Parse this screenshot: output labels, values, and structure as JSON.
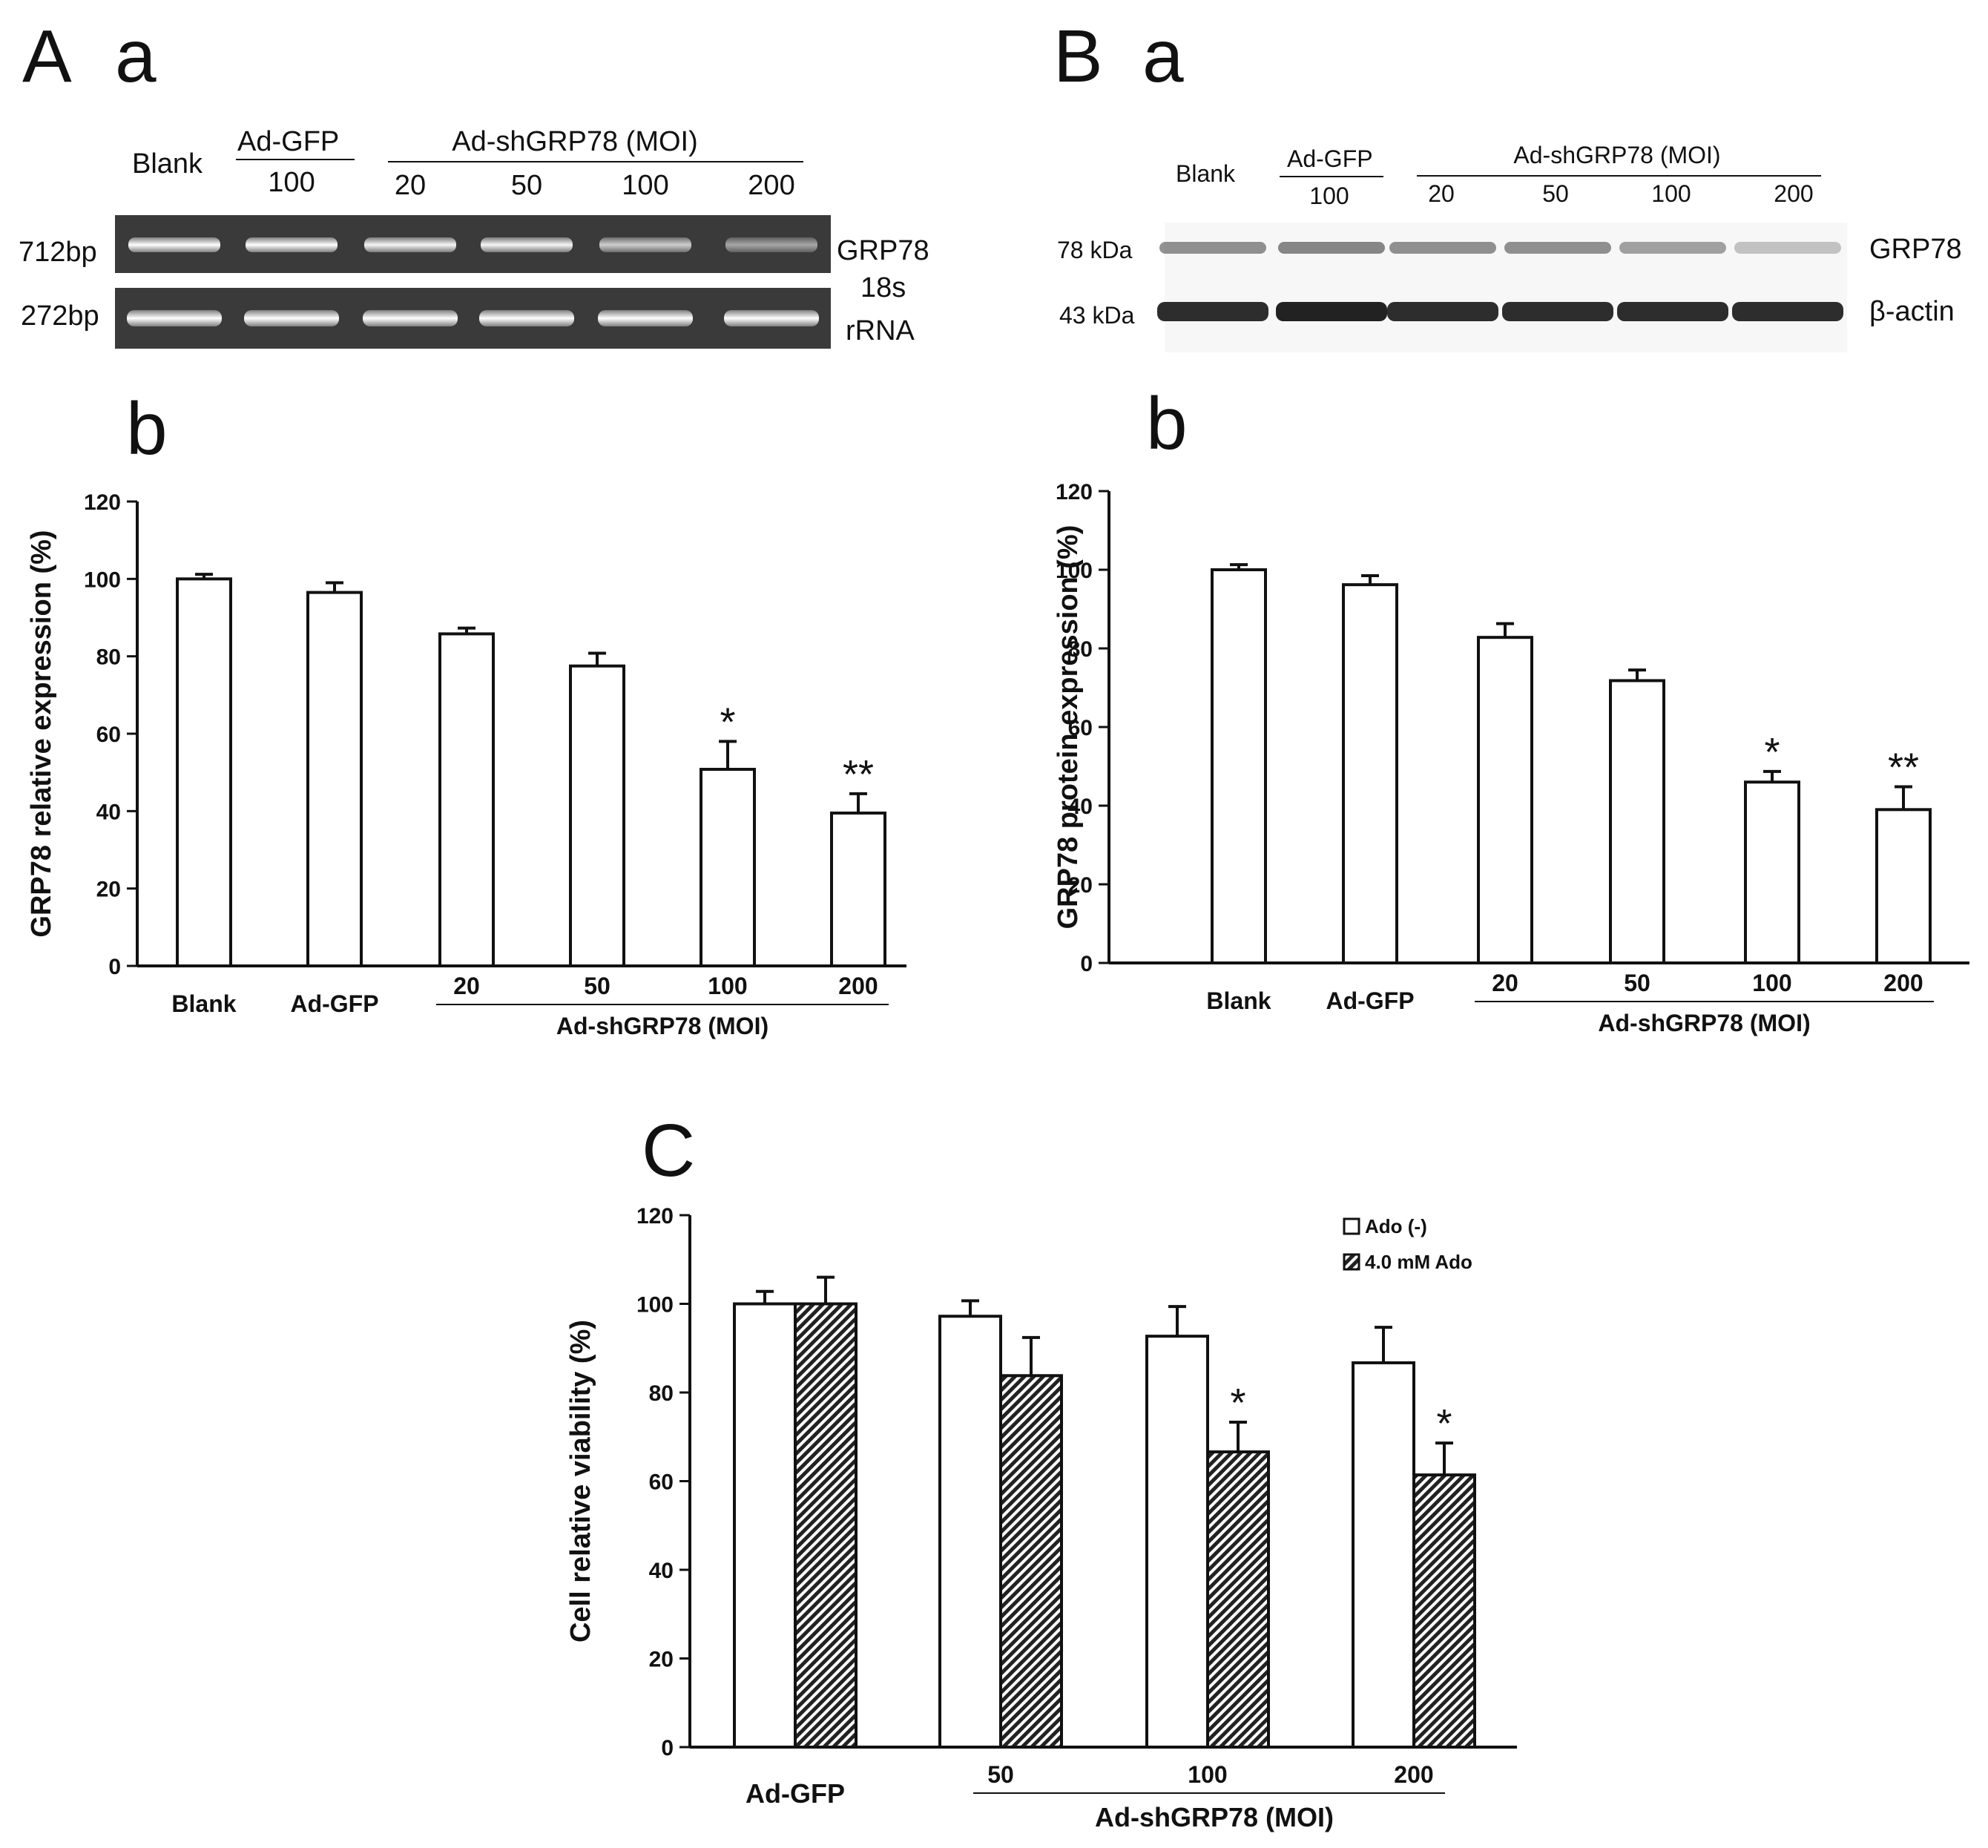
{
  "panels": {
    "A_letter": "A",
    "A_sub_a": "a",
    "A_sub_b": "b",
    "B_letter": "B",
    "B_sub_a": "a",
    "B_sub_b": "b",
    "C_letter": "C"
  },
  "gel": {
    "blank": "Blank",
    "ad_gfp": "Ad-GFP",
    "ad_gfp_dose": "100",
    "group": "Ad-shGRP78 (MOI)",
    "doses": [
      "20",
      "50",
      "100",
      "200"
    ],
    "row1_size": "712bp",
    "row1_name": "GRP78",
    "row2_size": "272bp",
    "row2_name_1": "18s",
    "row2_name_2": "rRNA",
    "grp78_intensity": [
      1.0,
      1.0,
      0.95,
      0.95,
      0.75,
      0.55
    ],
    "rrna_intensity": [
      1.0,
      1.0,
      1.0,
      1.0,
      1.0,
      1.0
    ]
  },
  "blot": {
    "blank": "Blank",
    "ad_gfp": "Ad-GFP",
    "ad_gfp_dose": "100",
    "group": "Ad-shGRP78 (MOI)",
    "doses": [
      "20",
      "50",
      "100",
      "200"
    ],
    "row1_size": "78 kDa",
    "row1_name": "GRP78",
    "row2_size": "43 kDa",
    "row2_name": "β-actin",
    "grp78_intensity": [
      0.6,
      0.65,
      0.6,
      0.6,
      0.5,
      0.3
    ],
    "actin_intensity": [
      0.95,
      1.0,
      0.95,
      0.95,
      0.95,
      0.95
    ]
  },
  "chart_data": [
    {
      "id": "A-b",
      "type": "bar",
      "ylabel": "GRP78 relative expression (%)",
      "ylim": [
        0,
        120
      ],
      "yticks": [
        0,
        20,
        40,
        60,
        80,
        100,
        120
      ],
      "categories": [
        "Blank",
        "Ad-GFP",
        "20",
        "50",
        "100",
        "200"
      ],
      "group_label": "Ad-shGRP78 (MOI)",
      "values": [
        100,
        96.5,
        85.8,
        77.5,
        50.8,
        39.5
      ],
      "errors": [
        1.2,
        2.5,
        1.5,
        3.3,
        7.2,
        5.0
      ],
      "annotations": [
        "",
        "",
        "",
        "",
        "*",
        "**"
      ]
    },
    {
      "id": "B-b",
      "type": "bar",
      "ylabel": "GRP78 protein expression (%)",
      "ylim": [
        0,
        120
      ],
      "yticks": [
        0,
        20,
        40,
        60,
        80,
        100,
        120
      ],
      "categories": [
        "Blank",
        "Ad-GFP",
        "20",
        "50",
        "100",
        "200"
      ],
      "group_label": "Ad-shGRP78 (MOI)",
      "values": [
        100,
        96.2,
        82.8,
        71.8,
        46.0,
        39.0
      ],
      "errors": [
        1.3,
        2.3,
        3.5,
        2.7,
        2.7,
        5.8
      ],
      "annotations": [
        "",
        "",
        "",
        "",
        "*",
        "**"
      ]
    },
    {
      "id": "C",
      "type": "bar",
      "ylabel": "Cell relative viability (%)",
      "ylim": [
        0,
        120
      ],
      "yticks": [
        0,
        20,
        40,
        60,
        80,
        100,
        120
      ],
      "categories": [
        "Ad-GFP",
        "50",
        "100",
        "200"
      ],
      "group_label": "Ad-shGRP78 (MOI)",
      "series": [
        {
          "name": "Ado (-)",
          "values": [
            100,
            97.2,
            92.7,
            86.7
          ],
          "errors": [
            2.8,
            3.5,
            6.7,
            8.0
          ],
          "annotations": [
            "",
            "",
            "",
            ""
          ]
        },
        {
          "name": "4.0 mM Ado",
          "values": [
            100,
            83.8,
            66.6,
            61.4
          ],
          "errors": [
            6.0,
            8.6,
            6.7,
            7.2
          ],
          "annotations": [
            "",
            "",
            "*",
            "*"
          ]
        }
      ]
    }
  ]
}
